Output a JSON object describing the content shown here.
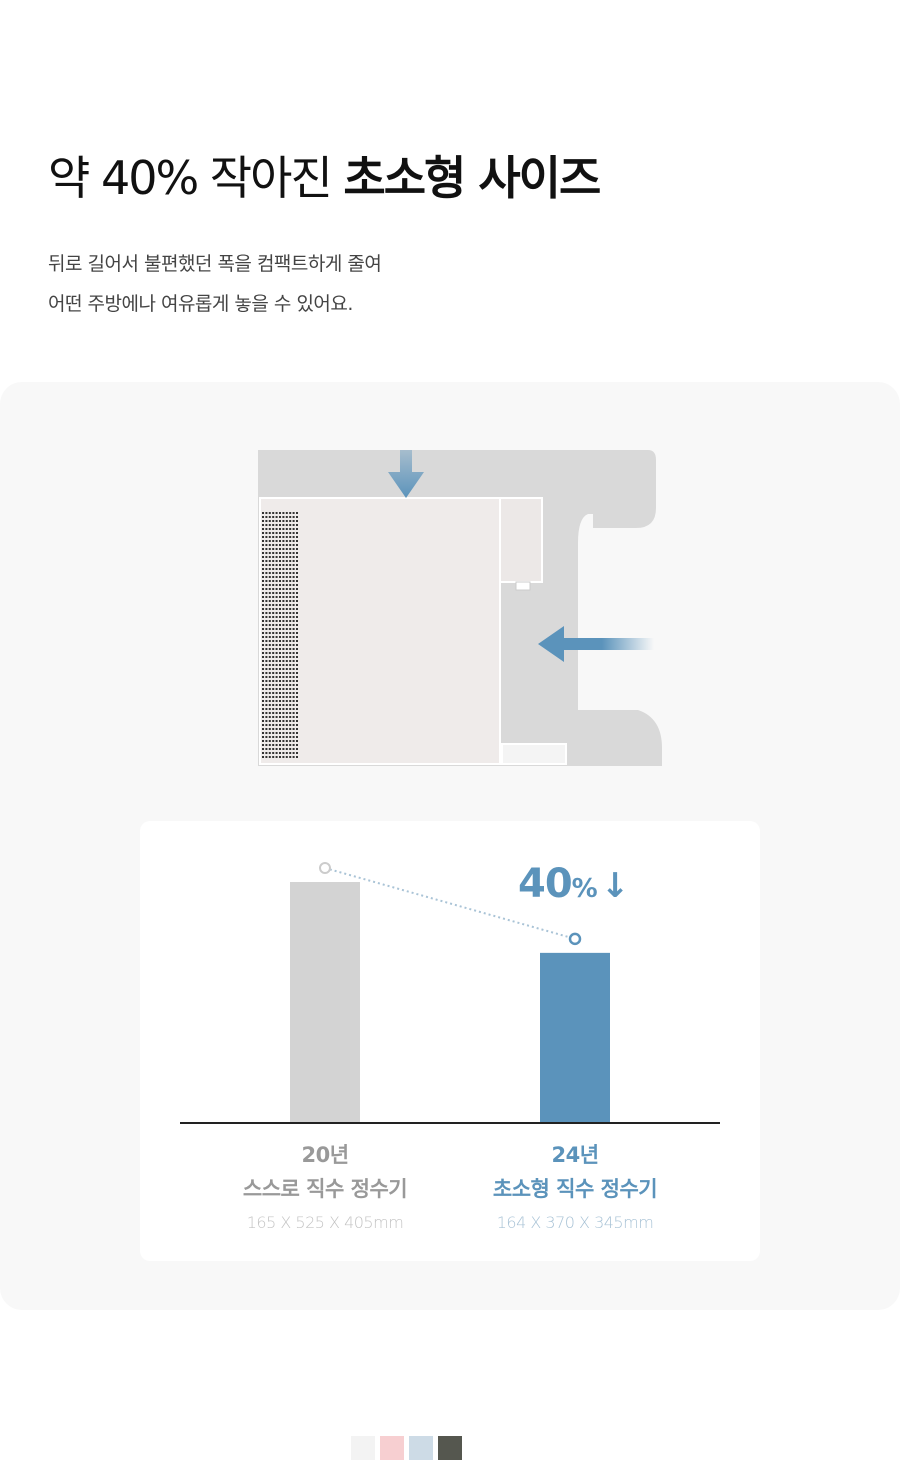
{
  "header": {
    "title_regular": "약 40% 작아진 ",
    "title_bold": "초소형 사이즈",
    "desc_line1": "뒤로 길어서 불편했던 폭을 컴팩트하게 줄여",
    "desc_line2": "어떤 주방에나 여유롭게 놓을 수 있어요."
  },
  "colors": {
    "accent": "#5b93bb",
    "old_bar": "#d3d3d3",
    "panel": "#f8f8f8"
  },
  "chart_data": {
    "type": "bar",
    "categories": [
      "20년 스스로 직수 정수기",
      "24년 초소형 직수 정수기"
    ],
    "values": [
      525,
      370
    ],
    "ylim": [
      0,
      525
    ],
    "grid": false,
    "annotation": "40%↓",
    "labels": [
      {
        "year": "20년",
        "name": "스스로 직수 정수기",
        "dims": "165 X 525 X 405mm"
      },
      {
        "year": "24년",
        "name": "초소형 직수 정수기",
        "dims": "164 X 370 X 345mm"
      }
    ],
    "badge": {
      "number": "40",
      "unit": "%"
    }
  },
  "swatches": [
    "#f3f3f3",
    "#f7cfd1",
    "#cddbe6",
    "#55574f"
  ]
}
